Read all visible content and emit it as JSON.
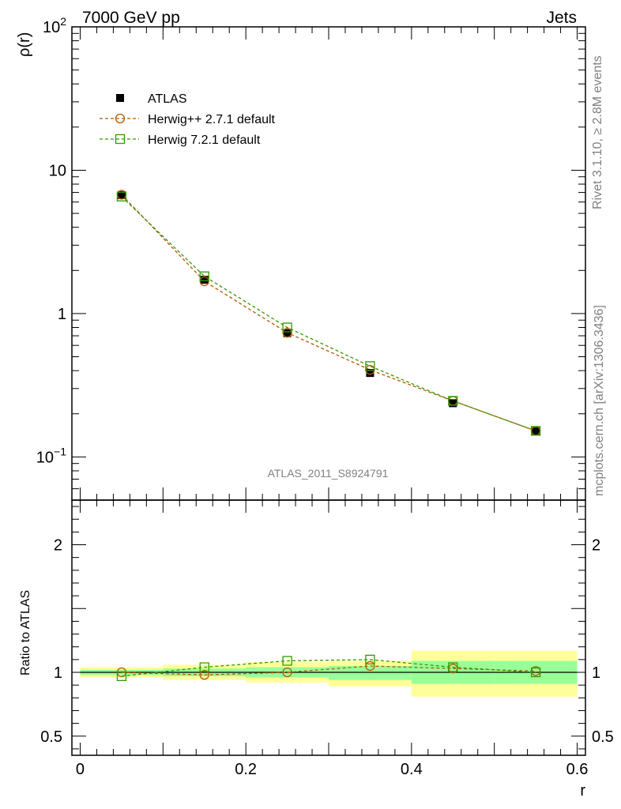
{
  "header": {
    "left": "7000 GeV pp",
    "right": "Jets"
  },
  "side_labels": {
    "rivet": "Rivet 3.1.10, ≥ 2.8M events",
    "mcplots": "mcplots.cern.ch [arXiv:1306.3436]"
  },
  "analysis_label": "ATLAS_2011_S8924791",
  "colors": {
    "data": "#000000",
    "herwigpp": "#b35900",
    "herwig7": "#339900",
    "band_outer": "#ffff99",
    "band_inner": "#99ff99"
  },
  "chart_data": [
    {
      "type": "scatter",
      "panel": "main",
      "ylabel": "ρ(r)",
      "xlabel": "",
      "yscale": "log",
      "ylim": [
        0.05,
        100
      ],
      "xlim": [
        -0.01,
        0.61
      ],
      "ytick_labels": [
        "10^-1",
        "1",
        "10",
        "10^2"
      ],
      "legend_position": "top-left",
      "x": [
        0.05,
        0.15,
        0.25,
        0.35,
        0.45,
        0.55
      ],
      "series": [
        {
          "name": "ATLAS",
          "marker": "square-filled",
          "values": [
            6.7,
            1.72,
            0.73,
            0.385,
            0.237,
            0.151
          ]
        },
        {
          "name": "Herwig++ 2.7.1 default",
          "marker": "circle-open",
          "values": [
            6.75,
            1.68,
            0.735,
            0.405,
            0.246,
            0.152
          ]
        },
        {
          "name": "Herwig 7.2.1 default",
          "marker": "square-open",
          "values": [
            6.55,
            1.82,
            0.8,
            0.43,
            0.246,
            0.152
          ]
        }
      ]
    },
    {
      "type": "scatter",
      "panel": "ratio",
      "ylabel": "Ratio to ATLAS",
      "xlabel": "r",
      "ylim": [
        0.35,
        2.35
      ],
      "xlim": [
        -0.01,
        0.61
      ],
      "ytick_labels": [
        "0.5",
        "1",
        "2"
      ],
      "xtick_labels": [
        "0",
        "0.2",
        "0.4",
        "0.6"
      ],
      "bands": [
        {
          "x_low": 0.0,
          "x_high": 0.1,
          "outer": [
            0.96,
            1.04
          ],
          "inner": [
            0.98,
            1.02
          ]
        },
        {
          "x_low": 0.1,
          "x_high": 0.2,
          "outer": [
            0.94,
            1.06
          ],
          "inner": [
            0.97,
            1.03
          ]
        },
        {
          "x_low": 0.2,
          "x_high": 0.3,
          "outer": [
            0.92,
            1.08
          ],
          "inner": [
            0.96,
            1.04
          ]
        },
        {
          "x_low": 0.3,
          "x_high": 0.4,
          "outer": [
            0.89,
            1.09
          ],
          "inner": [
            0.94,
            1.05
          ]
        },
        {
          "x_low": 0.4,
          "x_high": 0.5,
          "outer": [
            0.81,
            1.17
          ],
          "inner": [
            0.91,
            1.09
          ]
        },
        {
          "x_low": 0.5,
          "x_high": 0.6,
          "outer": [
            0.81,
            1.17
          ],
          "inner": [
            0.91,
            1.09
          ]
        }
      ],
      "x": [
        0.05,
        0.15,
        0.25,
        0.35,
        0.45,
        0.55
      ],
      "series": [
        {
          "name": "Herwig++ 2.7.1 default",
          "values": [
            1.0,
            0.98,
            1.0,
            1.05,
            1.03,
            1.01
          ]
        },
        {
          "name": "Herwig 7.2.1 default",
          "values": [
            0.97,
            1.04,
            1.09,
            1.1,
            1.04,
            1.0
          ]
        }
      ]
    }
  ]
}
